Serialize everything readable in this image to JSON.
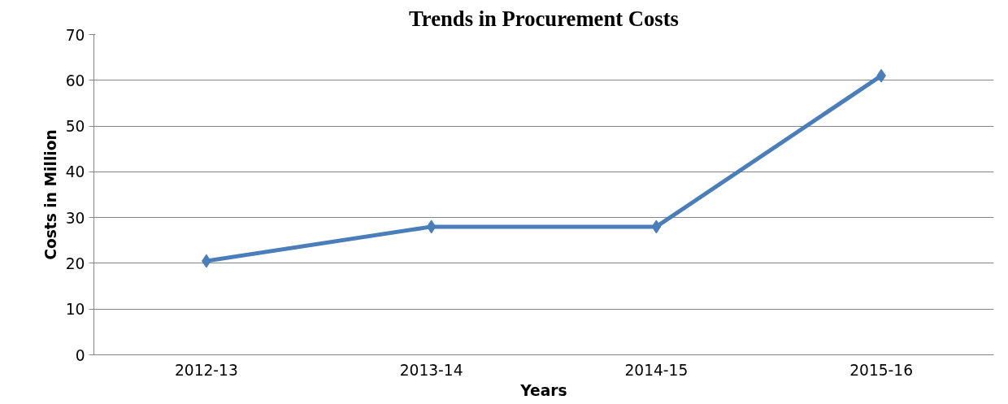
{
  "chart_data": {
    "type": "line",
    "title": "Trends in Procurement Costs",
    "xlabel": "Years",
    "ylabel": "Costs in Million",
    "categories": [
      "2012-13",
      "2013-14",
      "2014-15",
      "2015-16"
    ],
    "series": [
      {
        "color": "#4a7ebb",
        "values": [
          20.5,
          28,
          28,
          61
        ]
      }
    ],
    "ylim": [
      0,
      70
    ],
    "yticks": [
      0,
      10,
      20,
      30,
      40,
      50,
      60,
      70
    ],
    "grid": "y",
    "marker": "diamond",
    "line_style": "solid"
  }
}
